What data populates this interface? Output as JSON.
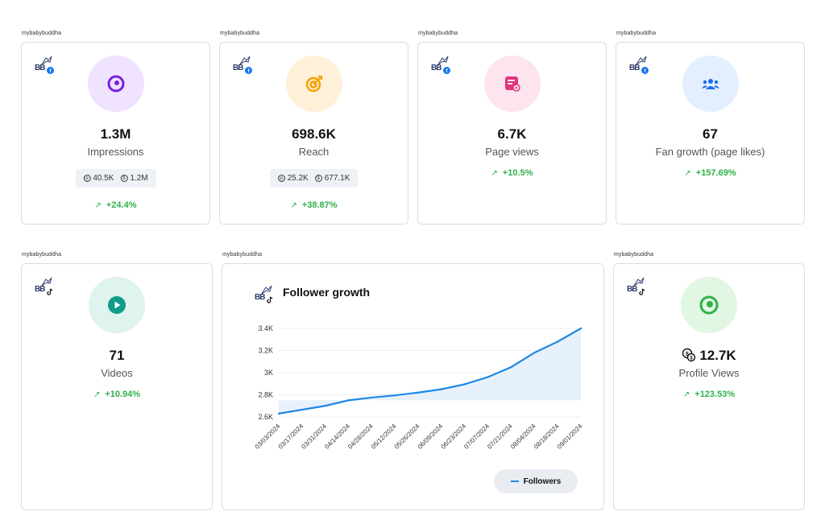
{
  "cards": {
    "impressions": {
      "owner": "mybabybuddha",
      "value": "1.3M",
      "label": "Impressions",
      "split_a": "40.5K",
      "split_b": "1.2M",
      "change": "+24.4%",
      "icon": "target-ring-icon",
      "platform": "facebook"
    },
    "reach": {
      "owner": "mybabybuddha",
      "value": "698.6K",
      "label": "Reach",
      "split_a": "25.2K",
      "split_b": "677.1K",
      "change": "+38.87%",
      "icon": "bullseye-arrow-icon",
      "platform": "facebook"
    },
    "page_views": {
      "owner": "mybabybuddha",
      "value": "6.7K",
      "label": "Page views",
      "change": "+10.5%",
      "icon": "page-view-icon",
      "platform": "facebook"
    },
    "fan_growth": {
      "owner": "mybabybuddha",
      "value": "67",
      "label": "Fan growth (page likes)",
      "change": "+157.69%",
      "icon": "users-icon",
      "platform": "facebook"
    },
    "videos": {
      "owner": "mybabybuddha",
      "value": "71",
      "label": "Videos",
      "change": "+10.94%",
      "icon": "play-icon",
      "platform": "tiktok"
    },
    "profile_views": {
      "owner": "mybabybuddha",
      "value": "12.7K",
      "label": "Profile Views",
      "change": "+123.53%",
      "icon": "eye-icon",
      "platform": "tiktok"
    }
  },
  "follower_chart": {
    "owner": "mybabybuddha",
    "platform": "tiktok",
    "legend": "Followers"
  },
  "logo_text": "BB",
  "colors": {
    "positive": "#2fb14a",
    "line": "#1e88e5",
    "facebook": "#1877f2"
  },
  "chart_data": {
    "type": "area",
    "title": "Follower growth",
    "xlabel": "",
    "ylabel": "",
    "ylim": [
      2600,
      3400
    ],
    "yticks": [
      "2.6K",
      "2.8K",
      "3K",
      "3.2K",
      "3.4K"
    ],
    "ytick_values": [
      2600,
      2800,
      3000,
      3200,
      3400
    ],
    "categories": [
      "03/03/2024",
      "03/17/2024",
      "03/31/2024",
      "04/14/2024",
      "04/28/2024",
      "05/12/2024",
      "05/26/2024",
      "06/09/2024",
      "06/23/2024",
      "07/07/2024",
      "07/21/2024",
      "08/04/2024",
      "08/18/2024",
      "09/01/2024"
    ],
    "series": [
      {
        "name": "Followers",
        "values": [
          2630,
          2665,
          2700,
          2750,
          2775,
          2795,
          2820,
          2850,
          2895,
          2960,
          3050,
          3180,
          3280,
          3400
        ]
      }
    ],
    "legend_position": "bottom-right",
    "grid": true
  }
}
